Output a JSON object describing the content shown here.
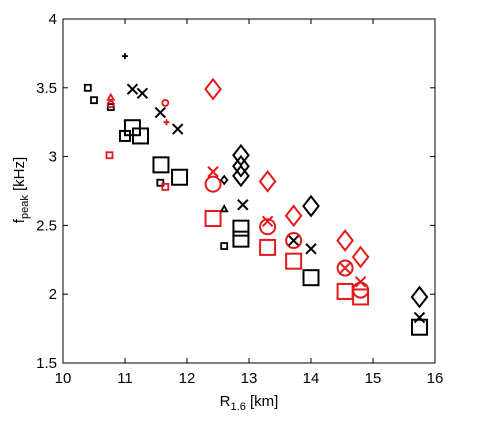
{
  "chart_data": {
    "type": "scatter",
    "xlabel": {
      "main": "R",
      "sub": "1.6",
      "unit": " [km]"
    },
    "ylabel": {
      "main": "f",
      "sub": "peak",
      "unit": " [kHz]"
    },
    "xlim": [
      10,
      16
    ],
    "ylim": [
      1.5,
      4
    ],
    "xticks": [
      "10",
      "11",
      "12",
      "13",
      "14",
      "15",
      "16"
    ],
    "yticks": [
      "1.5",
      "2",
      "2.5",
      "3",
      "3.5",
      "4"
    ],
    "grid": false,
    "colors": {
      "black": "#000000",
      "red": "#e31a1c"
    },
    "points": [
      {
        "x": 10.4,
        "y": 3.5,
        "marker": "square",
        "size": "small",
        "color": "black"
      },
      {
        "x": 10.5,
        "y": 3.41,
        "marker": "square",
        "size": "small",
        "color": "black"
      },
      {
        "x": 10.77,
        "y": 3.36,
        "marker": "square",
        "size": "small",
        "color": "black"
      },
      {
        "x": 10.77,
        "y": 3.38,
        "marker": "circle",
        "size": "small",
        "color": "red"
      },
      {
        "x": 10.77,
        "y": 3.43,
        "marker": "triangle",
        "size": "small",
        "color": "red"
      },
      {
        "x": 10.75,
        "y": 3.01,
        "marker": "square",
        "size": "small",
        "color": "red"
      },
      {
        "x": 11.0,
        "y": 3.73,
        "marker": "plus",
        "size": "small",
        "color": "black"
      },
      {
        "x": 11.0,
        "y": 3.15,
        "marker": "square",
        "size": "medium",
        "color": "black"
      },
      {
        "x": 11.12,
        "y": 3.21,
        "marker": "square",
        "size": "large",
        "color": "black"
      },
      {
        "x": 11.25,
        "y": 3.15,
        "marker": "square",
        "size": "large",
        "color": "black"
      },
      {
        "x": 11.12,
        "y": 3.49,
        "marker": "x",
        "size": "medium",
        "color": "black"
      },
      {
        "x": 11.28,
        "y": 3.46,
        "marker": "x",
        "size": "medium",
        "color": "black"
      },
      {
        "x": 11.57,
        "y": 3.32,
        "marker": "x",
        "size": "medium",
        "color": "black"
      },
      {
        "x": 11.85,
        "y": 3.2,
        "marker": "x",
        "size": "medium",
        "color": "black"
      },
      {
        "x": 11.65,
        "y": 3.39,
        "marker": "circle",
        "size": "small",
        "color": "red"
      },
      {
        "x": 11.67,
        "y": 3.25,
        "marker": "plus",
        "size": "small",
        "color": "red"
      },
      {
        "x": 11.58,
        "y": 2.94,
        "marker": "square",
        "size": "large",
        "color": "black"
      },
      {
        "x": 11.57,
        "y": 2.81,
        "marker": "square",
        "size": "small",
        "color": "black"
      },
      {
        "x": 11.65,
        "y": 2.78,
        "marker": "square",
        "size": "small",
        "color": "red"
      },
      {
        "x": 11.88,
        "y": 2.85,
        "marker": "square",
        "size": "large",
        "color": "black"
      },
      {
        "x": 12.42,
        "y": 3.49,
        "marker": "diamond",
        "size": "large",
        "color": "red"
      },
      {
        "x": 12.42,
        "y": 2.89,
        "marker": "x",
        "size": "medium",
        "color": "red"
      },
      {
        "x": 12.42,
        "y": 2.8,
        "marker": "circle",
        "size": "large",
        "color": "red"
      },
      {
        "x": 12.6,
        "y": 2.83,
        "marker": "diamond",
        "size": "small",
        "color": "black"
      },
      {
        "x": 12.42,
        "y": 2.55,
        "marker": "square",
        "size": "large",
        "color": "red"
      },
      {
        "x": 12.6,
        "y": 2.62,
        "marker": "triangle",
        "size": "small",
        "color": "black"
      },
      {
        "x": 12.6,
        "y": 2.35,
        "marker": "square",
        "size": "small",
        "color": "black"
      },
      {
        "x": 12.87,
        "y": 3.01,
        "marker": "diamond",
        "size": "large",
        "color": "black"
      },
      {
        "x": 12.87,
        "y": 2.93,
        "marker": "diamond",
        "size": "large",
        "color": "black"
      },
      {
        "x": 12.87,
        "y": 2.86,
        "marker": "diamond",
        "size": "large",
        "color": "black"
      },
      {
        "x": 12.9,
        "y": 2.65,
        "marker": "x",
        "size": "medium",
        "color": "black"
      },
      {
        "x": 12.87,
        "y": 2.48,
        "marker": "square",
        "size": "large",
        "color": "black"
      },
      {
        "x": 12.87,
        "y": 2.4,
        "marker": "square",
        "size": "large",
        "color": "black"
      },
      {
        "x": 13.3,
        "y": 2.82,
        "marker": "diamond",
        "size": "large",
        "color": "red"
      },
      {
        "x": 13.3,
        "y": 2.53,
        "marker": "x",
        "size": "medium",
        "color": "red"
      },
      {
        "x": 13.3,
        "y": 2.49,
        "marker": "circle",
        "size": "large",
        "color": "red"
      },
      {
        "x": 13.3,
        "y": 2.34,
        "marker": "square",
        "size": "large",
        "color": "red"
      },
      {
        "x": 13.72,
        "y": 2.57,
        "marker": "diamond",
        "size": "large",
        "color": "red"
      },
      {
        "x": 13.72,
        "y": 2.39,
        "marker": "x",
        "size": "medium",
        "color": "black"
      },
      {
        "x": 13.72,
        "y": 2.39,
        "marker": "circle",
        "size": "large",
        "color": "red"
      },
      {
        "x": 13.72,
        "y": 2.24,
        "marker": "square",
        "size": "large",
        "color": "red"
      },
      {
        "x": 14.0,
        "y": 2.64,
        "marker": "diamond",
        "size": "large",
        "color": "black"
      },
      {
        "x": 14.0,
        "y": 2.33,
        "marker": "x",
        "size": "medium",
        "color": "black"
      },
      {
        "x": 14.0,
        "y": 2.12,
        "marker": "square",
        "size": "large",
        "color": "black"
      },
      {
        "x": 14.55,
        "y": 2.39,
        "marker": "diamond",
        "size": "large",
        "color": "red"
      },
      {
        "x": 14.55,
        "y": 2.19,
        "marker": "x",
        "size": "medium",
        "color": "red"
      },
      {
        "x": 14.55,
        "y": 2.19,
        "marker": "circle",
        "size": "large",
        "color": "red"
      },
      {
        "x": 14.55,
        "y": 2.02,
        "marker": "square",
        "size": "large",
        "color": "red"
      },
      {
        "x": 14.8,
        "y": 2.27,
        "marker": "diamond",
        "size": "large",
        "color": "red"
      },
      {
        "x": 14.8,
        "y": 2.09,
        "marker": "x",
        "size": "medium",
        "color": "red"
      },
      {
        "x": 14.8,
        "y": 2.03,
        "marker": "circle",
        "size": "large",
        "color": "red"
      },
      {
        "x": 14.8,
        "y": 1.98,
        "marker": "square",
        "size": "large",
        "color": "red"
      },
      {
        "x": 15.75,
        "y": 1.98,
        "marker": "diamond",
        "size": "large",
        "color": "black"
      },
      {
        "x": 15.75,
        "y": 1.83,
        "marker": "x",
        "size": "medium",
        "color": "black"
      },
      {
        "x": 15.75,
        "y": 1.76,
        "marker": "square",
        "size": "large",
        "color": "black"
      }
    ]
  }
}
